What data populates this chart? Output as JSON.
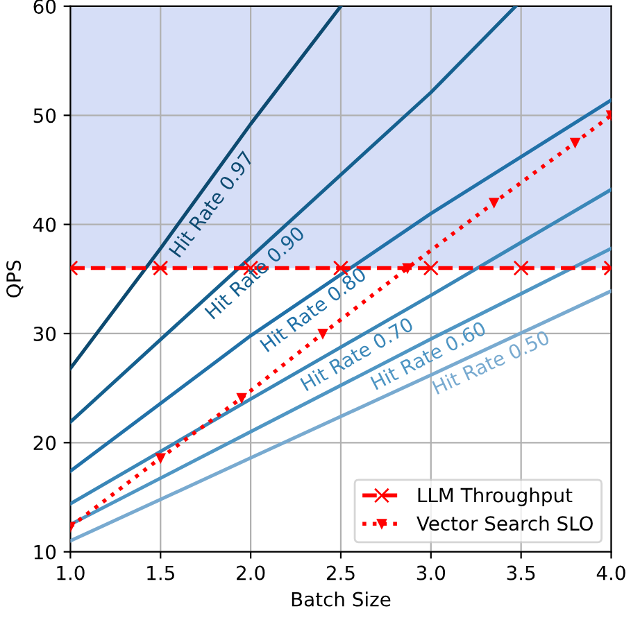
{
  "chart_data": {
    "type": "line",
    "xlabel": "Batch Size",
    "ylabel": "QPS",
    "xlim": [
      1.0,
      4.0
    ],
    "ylim": [
      10,
      60
    ],
    "xticks": [
      {
        "value": 1.0,
        "label": "1.0"
      },
      {
        "value": 1.5,
        "label": "1.5"
      },
      {
        "value": 2.0,
        "label": "2.0"
      },
      {
        "value": 2.5,
        "label": "2.5"
      },
      {
        "value": 3.0,
        "label": "3.0"
      },
      {
        "value": 3.5,
        "label": "3.5"
      },
      {
        "value": 4.0,
        "label": "4.0"
      }
    ],
    "yticks": [
      10,
      20,
      30,
      40,
      50,
      60
    ],
    "grid": true,
    "legend": "bottom right",
    "bands": [
      {
        "axis": "y",
        "from": 36,
        "to": 60,
        "color": "#d6def7"
      }
    ],
    "series": [
      {
        "color": "#0d4a70",
        "x": [
          1.0,
          1.5,
          2.0,
          2.5
        ],
        "values": [
          26.8,
          37.8,
          49.2,
          60
        ],
        "marker": "none",
        "line_style": "solid"
      },
      {
        "color": "#15608f",
        "x": [
          1.0,
          2.0,
          3.0,
          3.47
        ],
        "values": [
          21.9,
          37.0,
          52.1,
          60
        ],
        "marker": "none",
        "line_style": "solid"
      },
      {
        "color": "#2171a8",
        "x": [
          1.0,
          2.0,
          3.0,
          4.0
        ],
        "values": [
          17.4,
          29.8,
          41.0,
          51.4
        ],
        "marker": "none",
        "line_style": "solid"
      },
      {
        "color": "#3a87b8",
        "x": [
          1.0,
          2.0,
          3.0,
          4.0
        ],
        "values": [
          14.4,
          24.0,
          33.5,
          43.2
        ],
        "marker": "none",
        "line_style": "solid"
      },
      {
        "color": "#4f96c4",
        "x": [
          1.0,
          2.0,
          3.0,
          4.0
        ],
        "values": [
          12.5,
          21.0,
          29.5,
          37.8
        ],
        "marker": "none",
        "line_style": "solid"
      },
      {
        "color": "#78aad0",
        "x": [
          1.0,
          2.0,
          3.0,
          4.0
        ],
        "values": [
          11.0,
          18.6,
          26.2,
          33.9
        ],
        "marker": "none",
        "line_style": "solid"
      },
      {
        "name": "LLM Throughput",
        "color": "#ff0000",
        "x": [
          1.0,
          1.5,
          2.0,
          2.5,
          3.0,
          3.5,
          4.0
        ],
        "values": [
          36,
          36,
          36,
          36,
          36,
          36,
          36
        ],
        "marker": "cross",
        "line_style": "dashed"
      },
      {
        "name": "Vector Search SLO",
        "color": "#ff0000",
        "x": [
          1.0,
          1.5,
          1.95,
          2.4,
          2.87,
          3.35,
          3.8,
          4.0
        ],
        "values": [
          12.3,
          18.6,
          24.1,
          30.0,
          36.0,
          42.0,
          47.5,
          50.0
        ],
        "marker": "triangle",
        "line_style": "dotted"
      }
    ],
    "annotations": [
      {
        "text": "Hit Rate 0.97",
        "x": 1.72,
        "y": 42.6
      },
      {
        "text": "Hit Rate 0.90",
        "x": 1.97,
        "y": 36.5
      },
      {
        "text": "Hit Rate 0.80",
        "x": 2.3,
        "y": 33.2
      },
      {
        "text": "Hit Rate 0.70",
        "x": 2.55,
        "y": 29.2
      },
      {
        "text": "Hit Rate 0.60",
        "x": 2.95,
        "y": 29.1
      },
      {
        "text": "Hit Rate 0.50",
        "x": 3.3,
        "y": 28.5
      }
    ]
  }
}
